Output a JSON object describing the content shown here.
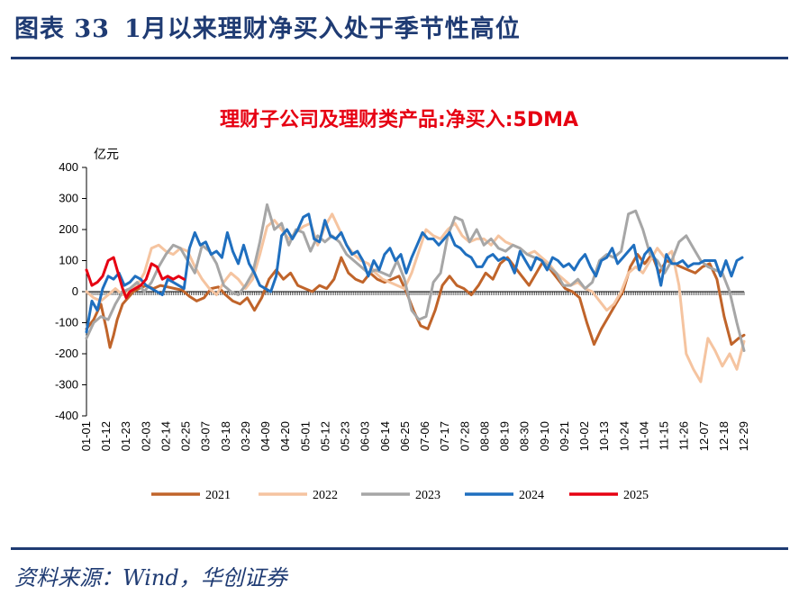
{
  "page": {
    "figure_label": "图表 33",
    "figure_title": "1月以来理财净买入处于季节性高位",
    "source": "资料来源：Wind，华创证券"
  },
  "colors": {
    "brand": "#1f3b73",
    "title_red": "#e60012",
    "s2021": "#c0642a",
    "s2022": "#f5c4a0",
    "s2023": "#a6a6a6",
    "s2024": "#1f6fbf",
    "s2025": "#e60012"
  },
  "chart_data": {
    "type": "line",
    "title": "理财子公司及理财类产品:净买入:5DMA",
    "ylabel": "亿元",
    "ylim": [
      -400,
      400
    ],
    "yticks": [
      400,
      300,
      200,
      100,
      0,
      -100,
      -200,
      -300,
      -400
    ],
    "xrange": [
      1,
      365
    ],
    "x_tick_labels": [
      "01-01",
      "01-12",
      "01-23",
      "02-03",
      "02-14",
      "02-25",
      "03-07",
      "03-18",
      "03-29",
      "04-09",
      "04-20",
      "05-01",
      "05-12",
      "05-23",
      "06-03",
      "06-14",
      "06-25",
      "07-06",
      "07-17",
      "07-28",
      "08-08",
      "08-19",
      "08-30",
      "09-10",
      "09-21",
      "10-02",
      "10-13",
      "10-24",
      "11-04",
      "11-15",
      "11-26",
      "12-07",
      "12-18",
      "12-29"
    ],
    "x_unit": "day of year (MM-DD)",
    "series": [
      {
        "name": "2021",
        "color": "#c0642a",
        "x": [
          1,
          5,
          9,
          12,
          14,
          16,
          18,
          21,
          24,
          27,
          30,
          34,
          38,
          42,
          46,
          50,
          54,
          58,
          62,
          66,
          70,
          74,
          78,
          82,
          86,
          90,
          94,
          98,
          102,
          106,
          110,
          114,
          118,
          122,
          126,
          130,
          134,
          138,
          142,
          146,
          150,
          154,
          158,
          162,
          166,
          170,
          174,
          178,
          182,
          186,
          190,
          194,
          198,
          202,
          206,
          210,
          214,
          218,
          222,
          226,
          230,
          234,
          238,
          242,
          246,
          250,
          254,
          258,
          262,
          266,
          270,
          274,
          278,
          282,
          286,
          290,
          294,
          298,
          302,
          306,
          310,
          314,
          318,
          322,
          326,
          330,
          334,
          338,
          342,
          346,
          350,
          354,
          358,
          362,
          365
        ],
        "values": [
          -120,
          -90,
          -40,
          -120,
          -180,
          -140,
          -90,
          -40,
          -20,
          0,
          10,
          20,
          10,
          20,
          15,
          10,
          5,
          -15,
          -30,
          -20,
          10,
          15,
          -10,
          -30,
          -40,
          -20,
          -60,
          -20,
          40,
          70,
          40,
          60,
          20,
          10,
          0,
          20,
          10,
          40,
          110,
          60,
          40,
          30,
          60,
          40,
          30,
          40,
          50,
          0,
          -60,
          -110,
          -120,
          -60,
          20,
          50,
          20,
          10,
          -10,
          20,
          60,
          40,
          90,
          110,
          80,
          50,
          20,
          60,
          100,
          70,
          40,
          10,
          0,
          -20,
          -100,
          -170,
          -120,
          -80,
          -40,
          0,
          80,
          120,
          90,
          120,
          60,
          100,
          90,
          80,
          70,
          60,
          80,
          90,
          40,
          -80,
          -170,
          -150,
          -140
        ]
      },
      {
        "name": "2022",
        "color": "#f5c4a0",
        "x": [
          1,
          5,
          9,
          13,
          17,
          21,
          25,
          29,
          33,
          37,
          41,
          45,
          49,
          53,
          57,
          61,
          65,
          69,
          73,
          77,
          81,
          85,
          89,
          93,
          97,
          101,
          105,
          109,
          113,
          117,
          121,
          125,
          129,
          133,
          137,
          141,
          145,
          149,
          153,
          157,
          161,
          165,
          169,
          173,
          177,
          181,
          185,
          189,
          193,
          197,
          201,
          205,
          209,
          213,
          217,
          221,
          225,
          229,
          233,
          237,
          241,
          245,
          249,
          253,
          257,
          261,
          265,
          269,
          273,
          277,
          281,
          285,
          289,
          293,
          297,
          301,
          305,
          309,
          313,
          317,
          321,
          325,
          329,
          333,
          337,
          341,
          345,
          349,
          353,
          357,
          361,
          365
        ],
        "values": [
          0,
          -20,
          -30,
          -10,
          10,
          -10,
          0,
          20,
          60,
          140,
          150,
          130,
          120,
          140,
          130,
          80,
          40,
          10,
          -10,
          30,
          60,
          40,
          10,
          40,
          120,
          210,
          230,
          200,
          170,
          190,
          210,
          220,
          150,
          210,
          250,
          200,
          150,
          120,
          100,
          90,
          60,
          40,
          30,
          20,
          10,
          60,
          130,
          200,
          180,
          170,
          200,
          220,
          180,
          160,
          170,
          170,
          150,
          180,
          160,
          150,
          140,
          120,
          130,
          110,
          90,
          60,
          40,
          20,
          30,
          10,
          0,
          -30,
          -60,
          -40,
          0,
          60,
          80,
          60,
          100,
          140,
          110,
          130,
          20,
          -200,
          -250,
          -290,
          -150,
          -190,
          -240,
          -200,
          -250,
          -160
        ]
      },
      {
        "name": "2023",
        "color": "#a6a6a6",
        "x": [
          1,
          5,
          9,
          13,
          17,
          21,
          25,
          29,
          33,
          37,
          41,
          45,
          49,
          53,
          57,
          61,
          65,
          69,
          73,
          77,
          81,
          85,
          89,
          93,
          97,
          101,
          105,
          109,
          113,
          117,
          121,
          125,
          129,
          133,
          137,
          141,
          145,
          149,
          153,
          157,
          161,
          165,
          169,
          173,
          177,
          181,
          185,
          189,
          193,
          197,
          201,
          205,
          209,
          213,
          217,
          221,
          225,
          229,
          233,
          237,
          241,
          245,
          249,
          253,
          257,
          261,
          265,
          269,
          273,
          277,
          281,
          285,
          289,
          293,
          297,
          301,
          305,
          309,
          313,
          317,
          321,
          325,
          329,
          333,
          337,
          341,
          345,
          349,
          353,
          357,
          361,
          365
        ],
        "values": [
          -150,
          -100,
          -80,
          -90,
          -40,
          0,
          10,
          30,
          0,
          30,
          80,
          120,
          150,
          140,
          100,
          60,
          150,
          130,
          90,
          20,
          0,
          -10,
          20,
          60,
          160,
          280,
          200,
          220,
          150,
          200,
          190,
          130,
          180,
          160,
          180,
          160,
          120,
          100,
          80,
          60,
          70,
          60,
          50,
          100,
          40,
          -60,
          -90,
          -80,
          30,
          60,
          180,
          240,
          230,
          160,
          200,
          150,
          170,
          140,
          130,
          150,
          140,
          120,
          110,
          100,
          80,
          60,
          20,
          20,
          40,
          10,
          30,
          100,
          120,
          110,
          130,
          250,
          260,
          200,
          120,
          100,
          60,
          100,
          160,
          180,
          140,
          100,
          80,
          70,
          60,
          0,
          -100,
          -190
        ]
      },
      {
        "name": "2024",
        "color": "#1f6fbf",
        "x": [
          1,
          4,
          7,
          10,
          13,
          16,
          19,
          22,
          25,
          28,
          31,
          34,
          37,
          40,
          43,
          46,
          49,
          52,
          55,
          58,
          61,
          64,
          67,
          70,
          73,
          76,
          79,
          82,
          85,
          88,
          91,
          94,
          97,
          100,
          103,
          106,
          109,
          112,
          115,
          118,
          121,
          124,
          127,
          130,
          133,
          136,
          139,
          142,
          145,
          148,
          151,
          154,
          157,
          160,
          163,
          166,
          169,
          172,
          175,
          178,
          181,
          184,
          187,
          190,
          193,
          196,
          199,
          202,
          205,
          208,
          211,
          214,
          217,
          220,
          223,
          226,
          229,
          232,
          235,
          238,
          241,
          244,
          247,
          250,
          253,
          256,
          259,
          262,
          265,
          268,
          271,
          274,
          277,
          280,
          283,
          286,
          289,
          292,
          295,
          298,
          301,
          304,
          307,
          310,
          313,
          316,
          319,
          322,
          325,
          328,
          331,
          334,
          337,
          340,
          343,
          346,
          349,
          352,
          355,
          358,
          361,
          364
        ],
        "values": [
          -130,
          -30,
          -60,
          10,
          50,
          40,
          60,
          20,
          30,
          50,
          40,
          20,
          10,
          0,
          -10,
          40,
          30,
          20,
          10,
          140,
          190,
          150,
          160,
          120,
          130,
          110,
          190,
          130,
          90,
          150,
          90,
          60,
          20,
          10,
          0,
          50,
          180,
          200,
          170,
          200,
          240,
          250,
          170,
          160,
          230,
          180,
          170,
          190,
          150,
          120,
          130,
          100,
          50,
          100,
          70,
          120,
          140,
          100,
          120,
          60,
          110,
          150,
          190,
          170,
          170,
          150,
          170,
          190,
          150,
          140,
          120,
          110,
          80,
          80,
          110,
          120,
          100,
          110,
          100,
          60,
          130,
          100,
          70,
          110,
          100,
          70,
          110,
          100,
          80,
          90,
          70,
          100,
          120,
          80,
          50,
          100,
          110,
          140,
          90,
          110,
          130,
          150,
          70,
          120,
          140,
          100,
          20,
          120,
          90,
          90,
          100,
          80,
          90,
          90,
          100,
          100,
          100,
          50,
          100,
          50,
          100,
          110
        ]
      },
      {
        "name": "2025",
        "color": "#e60012",
        "x": [
          1,
          4,
          7,
          10,
          13,
          16,
          19,
          21,
          23,
          25,
          28,
          31,
          34,
          37,
          40,
          43,
          46,
          49,
          52,
          55
        ],
        "values": [
          70,
          20,
          30,
          50,
          100,
          110,
          50,
          10,
          -20,
          0,
          10,
          20,
          40,
          90,
          80,
          40,
          50,
          40,
          50,
          40
        ]
      }
    ]
  }
}
